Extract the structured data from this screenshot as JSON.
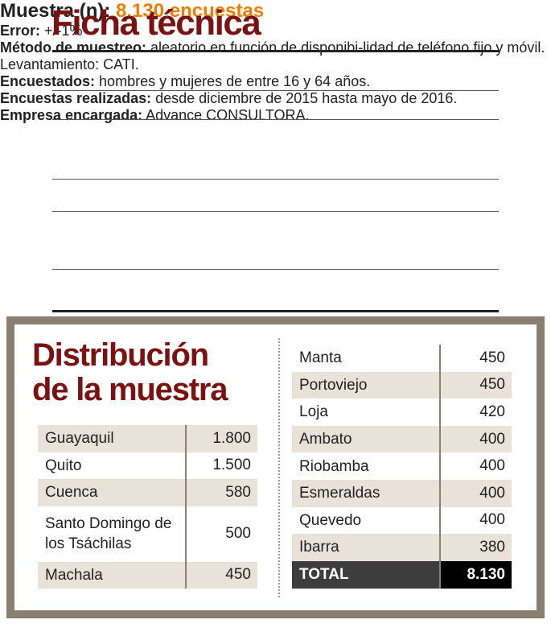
{
  "header": {
    "title": "Ficha técnica"
  },
  "details": [
    {
      "label": "Muestra (n):",
      "text": "8.130 encuestas"
    },
    {
      "label": "Error:",
      "text": "+/-1%"
    },
    {
      "label": "Método de muestreo:",
      "text": "aleatorio en función de disponibi-lidad de teléfono fijo y móvil. Levantamiento: CATI."
    },
    {
      "label": "Encuestados:",
      "text": "hombres y mujeres de entre 16 y 64 años."
    },
    {
      "label": "Encuestas realizadas:",
      "text": "desde diciembre de 2015 hasta mayo de 2016."
    },
    {
      "label": "Empresa encargada:",
      "text": "Advance CONSULTORA."
    }
  ],
  "distribution": {
    "title": [
      "Distribución",
      "de la muestra"
    ],
    "left": [
      [
        "Guayaquil",
        "1.800"
      ],
      [
        "Quito",
        "1.500"
      ],
      [
        "Cuenca",
        "580"
      ],
      [
        "Santo Domingo de los Tsáchilas",
        "500"
      ],
      [
        "Machala",
        "450"
      ]
    ],
    "right": [
      [
        "Manta",
        "450"
      ],
      [
        "Portoviejo",
        "450"
      ],
      [
        "Loja",
        "420"
      ],
      [
        "Ambato",
        "400"
      ],
      [
        "Riobamba",
        "400"
      ],
      [
        "Esmeraldas",
        "400"
      ],
      [
        "Quevedo",
        "400"
      ],
      [
        "Ibarra",
        "380"
      ]
    ],
    "total": {
      "label": "TOTAL",
      "value": "8.130"
    }
  }
}
